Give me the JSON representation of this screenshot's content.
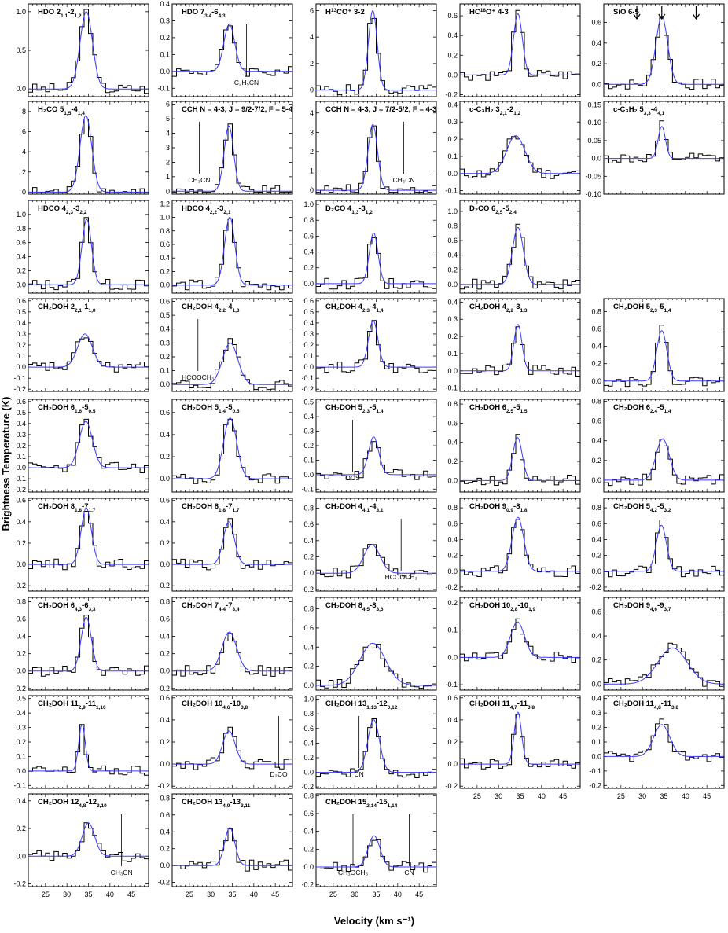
{
  "figure": {
    "ylabel": "Brightness Temperature (K)",
    "xlabel": "Velocity (km s⁻¹)"
  },
  "colors": {
    "observed": "#000000",
    "model": "#3a3aff",
    "overlap": "#6e6e6e"
  },
  "chart_data": [
    {
      "type": "line",
      "title_main": "HDO",
      "sup": "",
      "tail": "2",
      "sub1": "1,1",
      "sep": "-",
      "low": "2",
      "sub2": "1,2",
      "ylim": [
        -0.1,
        1.1
      ],
      "yticks": [
        0.0,
        0.5,
        1.0
      ],
      "peak": 1.0,
      "center": 34.5,
      "fwhm": 3.4,
      "xlim": [
        21,
        49
      ],
      "series": [
        {
          "name": "",
          "kind": "observed"
        },
        {
          "name": "",
          "kind": "model"
        }
      ]
    },
    {
      "type": "line",
      "title_main": "HDO",
      "sup": "",
      "tail": "7",
      "sub1": "3,4",
      "sep": "-",
      "low": "6",
      "sub2": "4,3",
      "ylim": [
        -0.15,
        0.4
      ],
      "yticks": [
        -0.1,
        0.0,
        0.1,
        0.2,
        0.3,
        0.4
      ],
      "peak": 0.28,
      "center": 34.3,
      "fwhm": 3.0,
      "xlim": [
        21,
        49
      ],
      "annotations": [
        {
          "label": "C₂H₅CN",
          "x": 38.3
        }
      ]
    },
    {
      "type": "line",
      "title_main": "H",
      "sup": "13",
      "tail": "CO⁺ 3-2",
      "ylim": [
        -0.5,
        6.5
      ],
      "yticks": [
        0,
        2,
        4,
        6
      ],
      "peak": 6.0,
      "center": 34.2,
      "fwhm": 2.4,
      "xlim": [
        21,
        49
      ]
    },
    {
      "type": "line",
      "title_main": "HC",
      "sup": "18",
      "tail": "O⁺ 4-3",
      "ylim": [
        -0.22,
        0.72
      ],
      "yticks": [
        -0.2,
        0.0,
        0.2,
        0.4,
        0.6
      ],
      "peak": 0.62,
      "center": 34.5,
      "fwhm": 2.4,
      "xlim": [
        21,
        49
      ]
    },
    {
      "type": "line",
      "title_main": "SiO 6-5",
      "ylim": [
        -0.12,
        0.78
      ],
      "yticks": [
        0.0,
        0.2,
        0.4,
        0.6
      ],
      "peak": 0.66,
      "center": 34.5,
      "fwhm": 3.2,
      "xlim": [
        21,
        49
      ],
      "arrows": [
        28.7,
        34.5,
        42.5
      ]
    },
    {
      "type": "line",
      "title_main": "H₂CO",
      "tail": "5",
      "sub1": "1,5",
      "sep": "-",
      "low": "4",
      "sub2": "1,4",
      "ylim": [
        -0.2,
        9.0
      ],
      "yticks": [
        0,
        2,
        4,
        6,
        8
      ],
      "peak": 7.6,
      "center": 34.4,
      "fwhm": 3.2,
      "xlim": [
        21,
        49
      ]
    },
    {
      "type": "line",
      "title_main": "CCH N = 4-3, J = 9/2-7/2, F = 5-4",
      "ylim": [
        -0.2,
        6.2
      ],
      "yticks": [
        0,
        1,
        2,
        3,
        4,
        5,
        6
      ],
      "peak": 4.5,
      "center": 34.2,
      "fwhm": 2.6,
      "xlim": [
        21,
        49
      ],
      "annotations": [
        {
          "label": "CH₃CN",
          "x": 27.3
        }
      ]
    },
    {
      "type": "line",
      "title_main": "CCH N = 4-3, J = 7/2-5/2, F = 4-3",
      "ylim": [
        -0.2,
        4.6
      ],
      "yticks": [
        0,
        1,
        2,
        3,
        4
      ],
      "peak": 3.4,
      "center": 34.2,
      "fwhm": 2.6,
      "xlim": [
        21,
        49
      ],
      "annotations": [
        {
          "label": "CH₃CN",
          "x": 41.4
        }
      ]
    },
    {
      "type": "line",
      "title_main": "c-C₃H₂",
      "tail": "3",
      "sub1": "2,1",
      "sep": "-",
      "low": "2",
      "sub2": "1,2",
      "ylim": [
        -0.12,
        0.42
      ],
      "yticks": [
        -0.1,
        0.0,
        0.1,
        0.2,
        0.3,
        0.4
      ],
      "peak": 0.22,
      "center": 34.0,
      "fwhm": 5.0,
      "xlim": [
        21,
        49
      ]
    },
    {
      "type": "line",
      "title_main": "c-C₃H₂",
      "tail": "5",
      "sub1": "3,3",
      "sep": "-",
      "low": "4",
      "sub2": "4,1",
      "ylim": [
        -0.1,
        0.16
      ],
      "yticks": [
        -0.1,
        -0.05,
        0.0,
        0.05,
        0.1,
        0.15
      ],
      "peak": 0.09,
      "center": 34.5,
      "fwhm": 2.0,
      "xlim": [
        21,
        49
      ]
    },
    {
      "type": "line",
      "title_main": "HDCO",
      "tail": "4",
      "sub1": "2,3",
      "sep": "-",
      "low": "3",
      "sub2": "2,2",
      "ylim": [
        -0.12,
        1.2
      ],
      "yticks": [
        0.0,
        0.2,
        0.4,
        0.6,
        0.8,
        1.0
      ],
      "peak": 0.93,
      "center": 34.6,
      "fwhm": 2.6,
      "xlim": [
        21,
        49
      ]
    },
    {
      "type": "line",
      "title_main": "HDCO",
      "tail": "4",
      "sub1": "2,2",
      "sep": "-",
      "low": "3",
      "sub2": "2,1",
      "ylim": [
        -0.12,
        1.25
      ],
      "yticks": [
        0.0,
        0.2,
        0.4,
        0.6,
        0.8,
        1.0,
        1.2
      ],
      "peak": 1.0,
      "center": 34.4,
      "fwhm": 2.8,
      "xlim": [
        21,
        49
      ]
    },
    {
      "type": "line",
      "title_main": "D₂CO",
      "tail": "4",
      "sub1": "1,3",
      "sep": "-",
      "low": "3",
      "sub2": "1,2",
      "ylim": [
        -0.12,
        1.05
      ],
      "yticks": [
        0.0,
        0.2,
        0.4,
        0.6,
        0.8,
        1.0
      ],
      "peak": 0.64,
      "center": 34.4,
      "fwhm": 2.4,
      "xlim": [
        21,
        49
      ]
    },
    {
      "type": "line",
      "title_main": "D₂CO",
      "tail": "6",
      "sub1": "2,5",
      "sep": "-",
      "low": "5",
      "sub2": "2,4",
      "ylim": [
        -0.12,
        1.15
      ],
      "yticks": [
        0.0,
        0.2,
        0.4,
        0.6,
        0.8,
        1.0
      ],
      "peak": 0.78,
      "center": 34.5,
      "fwhm": 3.0,
      "xlim": [
        21,
        49
      ]
    },
    null,
    {
      "type": "line",
      "title_main": "CH₂DOH",
      "tail": "2",
      "sub1": "2,1",
      "sep": "-",
      "low": "1",
      "sub2": "1,0",
      "ylim": [
        -0.22,
        0.62
      ],
      "yticks": [
        -0.2,
        -0.1,
        0.0,
        0.1,
        0.2,
        0.3,
        0.4,
        0.5,
        0.6
      ],
      "peak": 0.3,
      "center": 34.2,
      "fwhm": 4.0,
      "xlim": [
        21,
        49
      ]
    },
    {
      "type": "line",
      "title_main": "CH₂DOH",
      "tail": "4",
      "sub1": "2,2",
      "sep": "-",
      "low": "4",
      "sub2": "1,3",
      "ylim": [
        -0.05,
        0.62
      ],
      "yticks": [
        0.0,
        0.1,
        0.2,
        0.3,
        0.4,
        0.5,
        0.6
      ],
      "peak": 0.3,
      "center": 34.5,
      "fwhm": 4.2,
      "xlim": [
        21,
        49
      ],
      "annotations": [
        {
          "label": "HCOOCH₃",
          "x": 27.0
        }
      ]
    },
    {
      "type": "line",
      "title_main": "CH₂DOH",
      "tail": "4",
      "sub1": "2,3",
      "sep": "-",
      "low": "4",
      "sub2": "1,4",
      "ylim": [
        -0.22,
        0.62
      ],
      "yticks": [
        -0.2,
        -0.1,
        0.0,
        0.1,
        0.2,
        0.3,
        0.4,
        0.5,
        0.6
      ],
      "peak": 0.42,
      "center": 34.3,
      "fwhm": 2.6,
      "xlim": [
        21,
        49
      ]
    },
    {
      "type": "line",
      "title_main": "CH₂DOH",
      "tail": "4",
      "sub1": "2,2",
      "sep": "-",
      "low": "3",
      "sub2": "1,3",
      "ylim": [
        -0.12,
        0.42
      ],
      "yticks": [
        -0.1,
        0.0,
        0.1,
        0.2,
        0.3,
        0.4
      ],
      "peak": 0.27,
      "center": 34.5,
      "fwhm": 2.2,
      "xlim": [
        21,
        49
      ]
    },
    {
      "type": "line",
      "title_main": "CH₂DOH",
      "tail": "5",
      "sub1": "2,3",
      "sep": "-",
      "low": "5",
      "sub2": "1,4",
      "ylim": [
        -0.12,
        0.95
      ],
      "yticks": [
        0.0,
        0.2,
        0.4,
        0.6,
        0.8
      ],
      "peak": 0.58,
      "center": 34.5,
      "fwhm": 2.8,
      "xlim": [
        21,
        49
      ]
    },
    {
      "type": "line",
      "title_main": "CH₂DOH",
      "tail": "6",
      "sub1": "1,6",
      "sep": "-",
      "low": "5",
      "sub2": "0,5",
      "ylim": [
        -0.22,
        0.62
      ],
      "yticks": [
        -0.2,
        -0.1,
        0.0,
        0.1,
        0.2,
        0.3,
        0.4,
        0.5,
        0.6
      ],
      "peak": 0.42,
      "center": 34.4,
      "fwhm": 3.6,
      "xlim": [
        21,
        49
      ]
    },
    {
      "type": "line",
      "title_main": "CH₂DOH",
      "tail": "5",
      "sub1": "1,4",
      "sep": "-",
      "low": "5",
      "sub2": "0,5",
      "ylim": [
        -0.12,
        0.72
      ],
      "yticks": [
        0.0,
        0.2,
        0.4,
        0.6
      ],
      "peak": 0.55,
      "center": 34.5,
      "fwhm": 3.6,
      "xlim": [
        21,
        49
      ]
    },
    {
      "type": "line",
      "title_main": "CH₂DOH",
      "tail": "5",
      "sub1": "2,3",
      "sep": "-",
      "low": "5",
      "sub2": "1,4",
      "ylim": [
        -0.12,
        0.52
      ],
      "yticks": [
        -0.1,
        0.0,
        0.1,
        0.2,
        0.3,
        0.4,
        0.5
      ],
      "peak": 0.26,
      "center": 34.4,
      "fwhm": 2.8,
      "xlim": [
        21,
        49
      ],
      "annotations": [
        {
          "label": "OCS",
          "x": 29.5
        }
      ]
    },
    {
      "type": "line",
      "title_main": "CH₂DOH",
      "tail": "6",
      "sub1": "2,5",
      "sep": "-",
      "low": "5",
      "sub2": "1,5",
      "ylim": [
        -0.12,
        0.85
      ],
      "yticks": [
        0.0,
        0.2,
        0.4,
        0.6,
        0.8
      ],
      "peak": 0.45,
      "center": 34.4,
      "fwhm": 2.6,
      "xlim": [
        21,
        49
      ]
    },
    {
      "type": "line",
      "title_main": "CH₂DOH",
      "tail": "6",
      "sub1": "2,4",
      "sep": "-",
      "low": "5",
      "sub2": "1,4",
      "ylim": [
        -0.12,
        0.82
      ],
      "yticks": [
        0.0,
        0.2,
        0.4,
        0.6,
        0.8
      ],
      "peak": 0.42,
      "center": 34.7,
      "fwhm": 3.6,
      "xlim": [
        21,
        49
      ]
    },
    {
      "type": "line",
      "title_main": "CH₂DOH",
      "tail": "8",
      "sub1": "1,8",
      "sep": "-",
      "low": "7",
      "sub2": "1,7",
      "ylim": [
        -0.25,
        0.62
      ],
      "yticks": [
        -0.2,
        0.0,
        0.2,
        0.4,
        0.6
      ],
      "peak": 0.53,
      "center": 34.5,
      "fwhm": 2.8,
      "xlim": [
        21,
        49
      ]
    },
    {
      "type": "line",
      "title_main": "CH₂DOH",
      "tail": "8",
      "sub1": "1,8",
      "sep": "-",
      "low": "7",
      "sub2": "1,7",
      "ylim": [
        -0.25,
        0.62
      ],
      "yticks": [
        -0.2,
        0.0,
        0.2,
        0.4,
        0.6
      ],
      "peak": 0.4,
      "center": 34.2,
      "fwhm": 3.0,
      "xlim": [
        21,
        49
      ]
    },
    {
      "type": "line",
      "title_main": "CH₂DOH",
      "tail": "4",
      "sub1": "4,1",
      "sep": "-",
      "low": "4",
      "sub2": "3,1",
      "ylim": [
        -0.22,
        0.92
      ],
      "yticks": [
        -0.2,
        0.0,
        0.2,
        0.4,
        0.6,
        0.8
      ],
      "peak": 0.35,
      "center": 34.0,
      "fwhm": 4.4,
      "xlim": [
        21,
        49
      ],
      "annotations": [
        {
          "label": "HCOOCH₃",
          "x": 40.8
        }
      ]
    },
    {
      "type": "line",
      "title_main": "CH₂DOH",
      "tail": "9",
      "sub1": "0,9",
      "sep": "-",
      "low": "8",
      "sub2": "1,8",
      "ylim": [
        -0.25,
        0.92
      ],
      "yticks": [
        -0.2,
        0.0,
        0.2,
        0.4,
        0.6,
        0.8
      ],
      "peak": 0.68,
      "center": 34.5,
      "fwhm": 3.2,
      "xlim": [
        21,
        49
      ]
    },
    {
      "type": "line",
      "title_main": "CH₂DOH",
      "tail": "5",
      "sub1": "4,2",
      "sep": "-",
      "low": "5",
      "sub2": "3,2",
      "ylim": [
        -0.25,
        0.92
      ],
      "yticks": [
        -0.2,
        0.0,
        0.2,
        0.4,
        0.6,
        0.8
      ],
      "peak": 0.58,
      "center": 34.4,
      "fwhm": 2.8,
      "xlim": [
        21,
        49
      ]
    },
    {
      "type": "line",
      "title_main": "CH₂DOH",
      "tail": "6",
      "sub1": "4,3",
      "sep": "-",
      "low": "6",
      "sub2": "3,3",
      "ylim": [
        -0.22,
        0.85
      ],
      "yticks": [
        -0.2,
        0.0,
        0.2,
        0.4,
        0.6,
        0.8
      ],
      "peak": 0.62,
      "center": 34.5,
      "fwhm": 2.8,
      "xlim": [
        21,
        49
      ]
    },
    {
      "type": "line",
      "title_main": "CH₂DOH",
      "tail": "7",
      "sub1": "4,4",
      "sep": "-",
      "low": "7",
      "sub2": "3,4",
      "ylim": [
        -0.22,
        0.85
      ],
      "yticks": [
        -0.2,
        0.0,
        0.2,
        0.4,
        0.6,
        0.8
      ],
      "peak": 0.45,
      "center": 34.3,
      "fwhm": 4.0,
      "xlim": [
        21,
        49
      ]
    },
    {
      "type": "line",
      "title_main": "CH₂DOH",
      "tail": "8",
      "sub1": "4,5",
      "sep": "-",
      "low": "8",
      "sub2": "3,6",
      "ylim": [
        -0.05,
        0.92
      ],
      "yticks": [
        0.0,
        0.2,
        0.4,
        0.6,
        0.8
      ],
      "peak": 0.44,
      "center": 34.2,
      "fwhm": 7.0,
      "xlim": [
        21,
        49
      ]
    },
    {
      "type": "line",
      "title_main": "CH₂DOH",
      "tail": "10",
      "sub1": "2,8",
      "sep": "-",
      "low": "10",
      "sub2": "1,9",
      "ylim": [
        -0.12,
        0.22
      ],
      "yticks": [
        -0.1,
        0.0,
        0.1,
        0.2
      ],
      "peak": 0.13,
      "center": 34.4,
      "fwhm": 3.8,
      "xlim": [
        21,
        49
      ]
    },
    {
      "type": "line",
      "title_main": "CH₂DOH",
      "tail": "9",
      "sub1": "4,6",
      "sep": "-",
      "low": "9",
      "sub2": "3,7",
      "ylim": [
        -0.05,
        0.72
      ],
      "yticks": [
        0.0,
        0.2,
        0.4,
        0.6
      ],
      "peak": 0.3,
      "center": 37.0,
      "fwhm": 8.0,
      "xlim": [
        21,
        49
      ]
    },
    {
      "type": "line",
      "title_main": "CH₂DOH",
      "tail": "11",
      "sub1": "2,9",
      "sep": "-",
      "low": "11",
      "sub2": "1,10",
      "ylim": [
        -0.12,
        0.52
      ],
      "yticks": [
        -0.1,
        0.0,
        0.1,
        0.2,
        0.3,
        0.4,
        0.5
      ],
      "peak": 0.32,
      "center": 33.5,
      "fwhm": 1.8,
      "xlim": [
        21,
        49
      ]
    },
    {
      "type": "line",
      "title_main": "CH₂DOH",
      "tail": "10",
      "sub1": "4,6",
      "sep": "-",
      "low": "10",
      "sub2": "3,8",
      "ylim": [
        -0.22,
        0.62
      ],
      "yticks": [
        -0.2,
        0.0,
        0.2,
        0.4,
        0.6
      ],
      "peak": 0.3,
      "center": 34.2,
      "fwhm": 3.4,
      "xlim": [
        21,
        49
      ],
      "annotations": [
        {
          "label": "D₂CO",
          "x": 45.8
        }
      ]
    },
    {
      "type": "line",
      "title_main": "CH₂DOH",
      "tail": "13",
      "sub1": "1,13",
      "sep": "-",
      "low": "12",
      "sub2": "0,12",
      "ylim": [
        -0.22,
        1.05
      ],
      "yticks": [
        -0.2,
        0.0,
        0.2,
        0.4,
        0.6,
        0.8,
        1.0
      ],
      "peak": 0.72,
      "center": 34.4,
      "fwhm": 3.2,
      "xlim": [
        21,
        49
      ],
      "annotations": [
        {
          "label": "CN",
          "x": 31.0
        }
      ]
    },
    {
      "type": "line",
      "title_main": "CH₂DOH",
      "tail": "11",
      "sub1": "4,7",
      "sep": "-",
      "low": "11",
      "sub2": "3,8",
      "ylim": [
        -0.22,
        0.62
      ],
      "yticks": [
        -0.2,
        0.0,
        0.2,
        0.4,
        0.6
      ],
      "peak": 0.47,
      "center": 34.5,
      "fwhm": 2.0,
      "xlim": [
        21,
        49
      ]
    },
    {
      "type": "line",
      "title_main": "CH₂DOH",
      "tail": "11",
      "sub1": "4,8",
      "sep": "-",
      "low": "11",
      "sub2": "3,8",
      "ylim": [
        -0.22,
        0.42
      ],
      "yticks": [
        -0.2,
        -0.1,
        0.0,
        0.1,
        0.2,
        0.3,
        0.4
      ],
      "peak": 0.22,
      "center": 34.5,
      "fwhm": 4.4,
      "xlim": [
        21,
        49
      ]
    },
    {
      "type": "line",
      "title_main": "CH₂DOH",
      "tail": "12",
      "sub1": "4,8",
      "sep": "-",
      "low": "12",
      "sub2": "3,10",
      "ylim": [
        -0.22,
        0.45
      ],
      "yticks": [
        -0.2,
        0.0,
        0.2,
        0.4
      ],
      "peak": 0.24,
      "center": 35.0,
      "fwhm": 3.4,
      "xlim": [
        21,
        49
      ],
      "annotations": [
        {
          "label": "CH₃CN",
          "x": 42.7
        }
      ]
    },
    {
      "type": "line",
      "title_main": "CH₂DOH",
      "tail": "13",
      "sub1": "4,9",
      "sep": "-",
      "low": "13",
      "sub2": "3,11",
      "ylim": [
        -0.25,
        0.85
      ],
      "yticks": [
        -0.2,
        0.0,
        0.2,
        0.4,
        0.6,
        0.8
      ],
      "peak": 0.45,
      "center": 34.4,
      "fwhm": 2.8,
      "xlim": [
        21,
        49
      ]
    },
    {
      "type": "line",
      "title_main": "CH₂DOH",
      "tail": "15",
      "sub1": "2,14",
      "sep": "-",
      "low": "15",
      "sub2": "1,14",
      "ylim": [
        -0.22,
        0.82
      ],
      "yticks": [
        -0.2,
        0.0,
        0.2,
        0.4,
        0.6,
        0.8
      ],
      "peak": 0.35,
      "center": 34.5,
      "fwhm": 3.2,
      "xlim": [
        21,
        49
      ],
      "annotations": [
        {
          "label": "CH₃OCH₃",
          "x": 29.6
        },
        {
          "label": "CN",
          "x": 42.7
        }
      ]
    }
  ],
  "xticks": [
    25,
    30,
    35,
    40,
    45
  ],
  "xtick_rows": [
    8,
    4
  ]
}
